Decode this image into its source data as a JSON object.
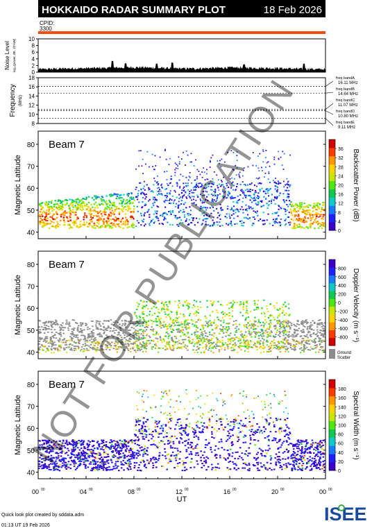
{
  "header": {
    "title": "HOKKAIDO RADAR SUMMARY PLOT",
    "date": "18 Feb 2026",
    "cpid_label": "CPID:",
    "cpid_value": "3300",
    "bar_color": "#ff4a10",
    "bg_color": "#000000"
  },
  "noise_panel": {
    "ylabel_line1": "Noise Level",
    "ylabel_line2": "log₁₀(power, dB, 10^nW)",
    "yticks": [
      "0",
      "2",
      "4",
      "6",
      "8",
      "10"
    ],
    "ylim": [
      0,
      10
    ]
  },
  "freq_panel": {
    "ylabel": "Frequency",
    "yunit": "(MHz)",
    "yticks": [
      "8",
      "10",
      "12",
      "14",
      "16",
      "18"
    ],
    "ylim": [
      8,
      18
    ],
    "bands": [
      {
        "label": "freq bandA",
        "value": "16.11 MHz",
        "freq": 16.11
      },
      {
        "label": "freq bandB",
        "value": "14.64 MHz",
        "freq": 14.64
      },
      {
        "label": "freq bandC",
        "value": "11.07 MHz",
        "freq": 11.07
      },
      {
        "label": "freq bandD",
        "value": "10.80 MHz",
        "freq": 10.8
      },
      {
        "label": "freq bandE",
        "value": "9.11 MHz",
        "freq": 9.11
      }
    ]
  },
  "panels": [
    {
      "beam_label": "Beam  7",
      "ylabel": "Magnetic Latitude",
      "yticks": [
        "40",
        "50",
        "60",
        "70",
        "80"
      ],
      "ylim": [
        37,
        86
      ],
      "colorbar_label": "Backscatter Power (dB)",
      "colorbar_ticks": [
        "0",
        "4",
        "8",
        "12",
        "16",
        "20",
        "24",
        "28",
        "32",
        "36"
      ],
      "colorbar_colors": [
        "#3a00c8",
        "#2020ff",
        "#1a7aff",
        "#10c8c8",
        "#10c850",
        "#50e610",
        "#c8e600",
        "#ffd200",
        "#ff9600",
        "#ff3c00",
        "#d20000"
      ],
      "ground_scatter_label": ""
    },
    {
      "beam_label": "Beam  7",
      "ylabel": "Magnetic Latitude",
      "yticks": [
        "40",
        "50",
        "60",
        "70",
        "80"
      ],
      "ylim": [
        37,
        86
      ],
      "colorbar_label": "Doppler Velocity (m s⁻¹)",
      "colorbar_ticks": [
        "-800",
        "-600",
        "-400",
        "-200",
        "0",
        "200",
        "400",
        "600",
        "800"
      ],
      "colorbar_colors": [
        "#d20000",
        "#ff3c00",
        "#ff9600",
        "#ffd200",
        "#c8e600",
        "#50e610",
        "#10c850",
        "#10c8c8",
        "#1a7aff",
        "#2020ff",
        "#3a00c8"
      ],
      "ground_scatter_label": "Ground Scatter"
    },
    {
      "beam_label": "Beam  7",
      "ylabel": "Magnetic Latitude",
      "yticks": [
        "40",
        "50",
        "60",
        "70",
        "80"
      ],
      "ylim": [
        37,
        86
      ],
      "colorbar_label": "Spectral Width (m s⁻¹)",
      "colorbar_ticks": [
        "0",
        "20",
        "40",
        "60",
        "80",
        "100",
        "120",
        "140",
        "160",
        "180"
      ],
      "colorbar_colors": [
        "#3a00c8",
        "#2020ff",
        "#1a7aff",
        "#10c8c8",
        "#10c850",
        "#50e610",
        "#c8e600",
        "#ffd200",
        "#ff9600",
        "#ff3c00",
        "#d20000"
      ],
      "ground_scatter_label": ""
    }
  ],
  "xaxis": {
    "label": "UT",
    "ticks": [
      {
        "hh": "00",
        "mm": "00",
        "h": 0
      },
      {
        "hh": "04",
        "mm": "00",
        "h": 4
      },
      {
        "hh": "08",
        "mm": "00",
        "h": 8
      },
      {
        "hh": "12",
        "mm": "00",
        "h": 12
      },
      {
        "hh": "16",
        "mm": "00",
        "h": 16
      },
      {
        "hh": "20",
        "mm": "00",
        "h": 20
      },
      {
        "hh": "00",
        "mm": "00",
        "h": 24
      }
    ]
  },
  "footer": {
    "credit": "Quick look plot created by sddata.adm",
    "timestamp": "01:13 UT 19 Feb 2026",
    "logo_text": "ISEE"
  },
  "watermark": "NOT FOR PUBLICATION",
  "chart_data": {
    "type": "heatmap",
    "title": "HOKKAIDO RADAR SUMMARY PLOT",
    "date": "18 Feb 2026",
    "xlabel": "UT",
    "xlim_hours": [
      0,
      24
    ],
    "subplots": [
      {
        "name": "Noise Level",
        "ylim": [
          0,
          10
        ],
        "profile": [
          [
            0,
            0.6
          ],
          [
            2,
            0.8
          ],
          [
            4,
            0.9
          ],
          [
            6,
            1.0
          ],
          [
            8,
            1.2
          ],
          [
            10,
            1.0
          ],
          [
            12,
            0.8
          ],
          [
            14,
            0.9
          ],
          [
            16,
            1.1
          ],
          [
            18,
            1.0
          ],
          [
            20,
            0.9
          ],
          [
            22,
            0.7
          ],
          [
            24,
            0.6
          ]
        ],
        "spikes": [
          [
            6.2,
            3.3
          ],
          [
            7.3,
            2.6
          ],
          [
            9.9,
            2.5
          ],
          [
            11.2,
            2.8
          ],
          [
            17.2,
            2.3
          ],
          [
            22.2,
            2.5
          ]
        ]
      },
      {
        "name": "Frequency",
        "ylim": [
          8,
          18
        ],
        "bands_mhz": [
          16.11,
          14.64,
          11.07,
          10.8,
          9.11
        ]
      },
      {
        "name": "Backscatter Power",
        "ylim": [
          37,
          86
        ],
        "unit": "dB",
        "range": [
          0,
          36
        ]
      },
      {
        "name": "Doppler Velocity",
        "ylim": [
          37,
          86
        ],
        "unit": "m s-1",
        "range": [
          -800,
          800
        ]
      },
      {
        "name": "Spectral Width",
        "ylim": [
          37,
          86
        ],
        "unit": "m s-1",
        "range": [
          0,
          180
        ]
      }
    ]
  }
}
